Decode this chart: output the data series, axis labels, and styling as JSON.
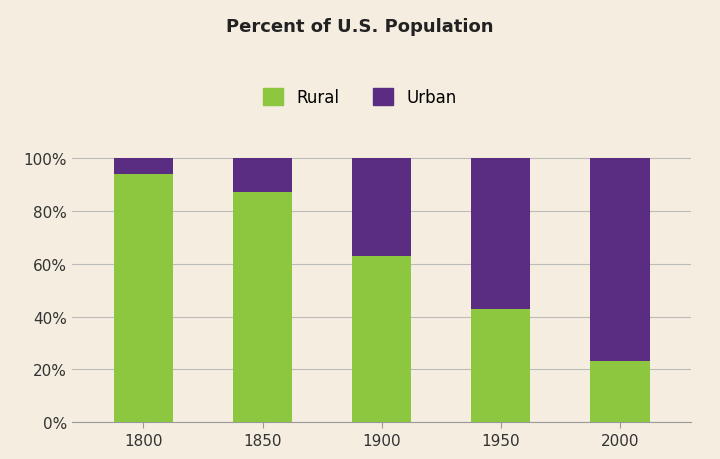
{
  "title": "Percent of U.S. Population",
  "categories": [
    "1800",
    "1850",
    "1900",
    "1950",
    "2000"
  ],
  "rural": [
    94,
    87,
    63,
    43,
    23
  ],
  "urban": [
    6,
    13,
    37,
    57,
    77
  ],
  "rural_color": "#8dc63f",
  "urban_color": "#5b2d82",
  "background_color": "#f5ede0",
  "yticks": [
    0,
    20,
    40,
    60,
    80,
    100
  ],
  "ytick_labels": [
    "0%",
    "20%",
    "40%",
    "60%",
    "80%",
    "100%"
  ],
  "legend_labels": [
    "Rural",
    "Urban"
  ],
  "title_fontsize": 13,
  "tick_fontsize": 11,
  "legend_fontsize": 12,
  "bar_width": 0.5
}
